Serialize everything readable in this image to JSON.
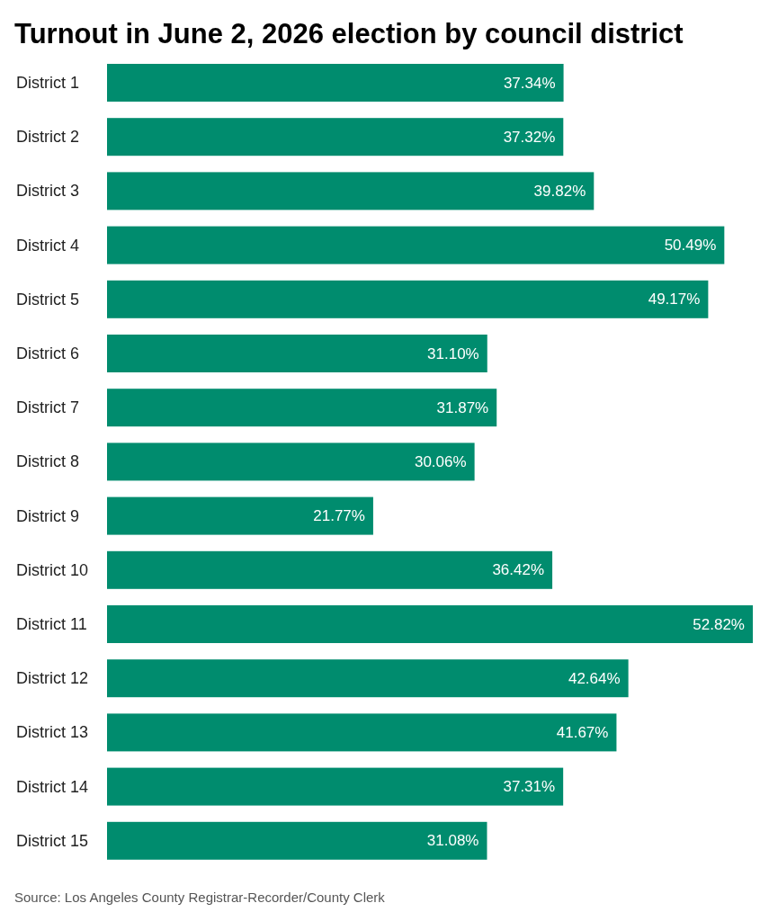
{
  "chart_data": {
    "type": "bar",
    "orientation": "horizontal",
    "title": "Turnout in June 2, 2026 election by council district",
    "categories": [
      "District 1",
      "District 2",
      "District 3",
      "District 4",
      "District 5",
      "District 6",
      "District 7",
      "District 8",
      "District 9",
      "District 10",
      "District 11",
      "District 12",
      "District 13",
      "District 14",
      "District 15"
    ],
    "values": [
      37.34,
      37.32,
      39.82,
      50.49,
      49.17,
      31.1,
      31.87,
      30.06,
      21.77,
      36.42,
      52.82,
      42.64,
      41.67,
      37.31,
      31.08
    ],
    "value_labels": [
      "37.34%",
      "37.32%",
      "39.82%",
      "50.49%",
      "49.17%",
      "31.10%",
      "31.87%",
      "30.06%",
      "21.77%",
      "36.42%",
      "52.82%",
      "42.64%",
      "41.67%",
      "37.31%",
      "31.08%"
    ],
    "color": "#008c6e",
    "annotations": [
      "Source: Los Angeles County Registrar-Recorder/County Clerk"
    ]
  }
}
